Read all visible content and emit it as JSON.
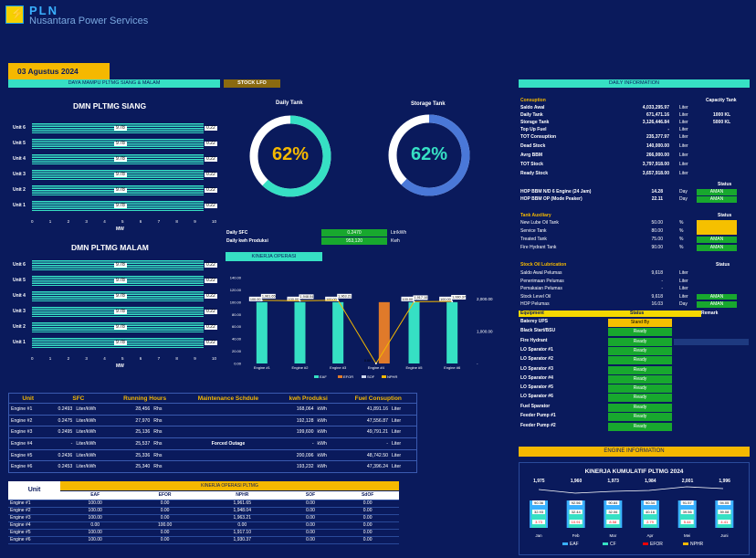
{
  "brand": {
    "name": "PLN",
    "subtitle": "Nusantara Power Services"
  },
  "date": "03 Agustus 2024",
  "labels": {
    "daya": "DAYA MAMPU PLTMG SIANG & MALAM",
    "stock": "STOCK LFO",
    "daily_info": "DAILY INFORMATION",
    "siang": "DMN PLTMG SIANG",
    "malam": "DMN PLTMG MALAM",
    "daily_tank": "Daily Tank",
    "storage_tank": "Storage Tank",
    "kinerja": "KINERJA OPERASI",
    "engine_info": "ENGINE INFORMATION",
    "kumulatif": "KINERJA KUMULATIF PLTMG 2024",
    "mw": "MW"
  },
  "tanks": {
    "daily_pct": "62%",
    "storage_pct": "62%",
    "daily_frac": 0.62,
    "storage_frac": 0.62
  },
  "sfc": {
    "daily_sfc_label": "Daily SFC",
    "daily_sfc": "0.2470",
    "daily_sfc_unit": "Ltr/kWh",
    "kwh_label": "Daily kwh Produksi",
    "kwh": "953,120",
    "kwh_unit": "Kwh"
  },
  "dmn": {
    "units": [
      "Unit 6",
      "Unit 5",
      "Unit 4",
      "Unit 3",
      "Unit 2",
      "Unit 1"
    ],
    "val": "9.78",
    "max": "0.22",
    "axis": [
      "0",
      "1",
      "2",
      "3",
      "4",
      "5",
      "6",
      "7",
      "8",
      "9",
      "10"
    ]
  },
  "chart_data": [
    {
      "type": "bar",
      "title": "KINERJA OPERASI",
      "categories": [
        "Engine #1",
        "Engine #2",
        "Engine #3",
        "Engine #4",
        "Engine #5",
        "Engine #6"
      ],
      "ylim": [
        0,
        140
      ],
      "y2lim": [
        0,
        2000
      ],
      "yticks": [
        "0.00",
        "20.00",
        "40.00",
        "60.00",
        "80.00",
        "100.00",
        "120.00",
        "140.00"
      ],
      "y2ticks": [
        "-",
        "1,000.00",
        "2,000.00"
      ],
      "series": [
        {
          "name": "EAF",
          "values": [
            100,
            100,
            100,
            0,
            100,
            100
          ],
          "color": "#36e0c4"
        },
        {
          "name": "EFOR",
          "values": [
            0,
            0,
            0,
            100,
            0,
            0
          ],
          "color": "#e07a2a"
        },
        {
          "name": "SOF",
          "values": [
            0,
            0,
            0,
            0,
            0,
            0
          ],
          "color": "#cfd8f0"
        },
        {
          "name": "NPHR",
          "values": [
            1961.65,
            1948.04,
            1963.21,
            0,
            1917.1,
            1930.37
          ],
          "color": "#f5b800"
        }
      ],
      "bar_labels": [
        "100.00",
        "100.00",
        "100.00",
        "0.00",
        "100.00",
        "100.00"
      ],
      "line_labels": [
        "1,961.65",
        "1,948.04",
        "1,963.21",
        "",
        "1,917.10",
        "1,930.37"
      ]
    },
    {
      "type": "bar",
      "title": "KINERJA KUMULATIF PLTMG 2024",
      "categories": [
        "Jan",
        "Feb",
        "Mar",
        "Apr",
        "Mei",
        "Juni"
      ],
      "series": [
        {
          "name": "EAF",
          "values": [
            90.36,
            92.56,
            90.84,
            90.34,
            91.57,
            94.05
          ]
        },
        {
          "name": "CF",
          "values": [
            32.93,
            32.44,
            32.06,
            40.16,
            39.56,
            39.08
          ]
        },
        {
          "name": "EFOR",
          "values": [
            3.73,
            10.91,
            8.58,
            2.79,
            5.44,
            4.41
          ]
        },
        {
          "name": "NPHR",
          "values": [
            1975,
            1960,
            1973,
            1984,
            2001,
            1996
          ]
        }
      ],
      "top_labels": [
        "1,975",
        "1,960",
        "1,973",
        "1,984",
        "2,001",
        "1,996"
      ]
    }
  ],
  "consumption": {
    "title": "Consuption",
    "cap": "Capacity Tank",
    "rows": [
      {
        "l": "Saldo Awal",
        "v": "4,033,295.97",
        "u": "Liter",
        "c": ""
      },
      {
        "l": "Daily Tank",
        "v": "671,471.16",
        "u": "Liter",
        "c": "1000 KL"
      },
      {
        "l": "Storage Tank",
        "v": "3,126,446.84",
        "u": "Liter",
        "c": "5000 KL"
      },
      {
        "l": "Top Up Fuel",
        "v": "-",
        "u": "Liter",
        "c": ""
      },
      {
        "l": "TOT Consuption",
        "v": "235,377.97",
        "u": "Liter",
        "c": ""
      },
      {
        "l": "Dead Stock",
        "v": "140,000.00",
        "u": "Liter",
        "c": ""
      },
      {
        "l": "Avrg BBM",
        "v": "266,000.00",
        "u": "Liter",
        "c": ""
      },
      {
        "l": "TOT Stock",
        "v": "3,797,918.00",
        "u": "Liter",
        "c": ""
      },
      {
        "l": "Ready Stock",
        "v": "3,657,918.00",
        "u": "Liter",
        "c": ""
      }
    ]
  },
  "hop": {
    "status": "Status",
    "rows": [
      {
        "l": "HOP BBM  N/D 6 Engine (24 Jam)",
        "v": "14.28",
        "u": "Day",
        "s": "AMAN"
      },
      {
        "l": "HOP BBM  OP (Mode Peaker)",
        "v": "22.11",
        "u": "Day",
        "s": "AMAN"
      }
    ]
  },
  "aux": {
    "title": "Tank Auxiliary",
    "status": "Status",
    "rows": [
      {
        "l": "New Lube Oil Tank",
        "v": "50.00",
        "u": "%",
        "s": ""
      },
      {
        "l": "Service Tank",
        "v": "80.00",
        "u": "%",
        "s": ""
      },
      {
        "l": "Treated Tank",
        "v": "75.00",
        "u": "%",
        "s": "AMAN"
      },
      {
        "l": "Fire Hydrant Tank",
        "v": "90.00",
        "u": "%",
        "s": "AMAN"
      }
    ]
  },
  "lub": {
    "title": "Stock Oil Lubrication",
    "status": "Status",
    "rows": [
      {
        "l": "Saldo Awal Pelumas",
        "v": "9,618",
        "u": "Liter",
        "s": ""
      },
      {
        "l": "Penerimaan Pelumas",
        "v": "-",
        "u": "Liter",
        "s": ""
      },
      {
        "l": "Pemakaian Pelumas",
        "v": "-",
        "u": "Liter",
        "s": ""
      },
      {
        "l": "Stock Level Oil",
        "v": "9,618",
        "u": "Liter",
        "s": "AMAN"
      },
      {
        "l": "HOP Pelumas",
        "v": "16.03",
        "u": "Day",
        "s": "AMAN"
      }
    ]
  },
  "equip": {
    "title": "Equipment",
    "status": "Status",
    "remark": "Remark",
    "rows": [
      {
        "l": "Baterey UPS",
        "s": "Stand By"
      },
      {
        "l": "Black Start/BSU",
        "s": "Ready"
      },
      {
        "l": "Fire Hydrant",
        "s": "Ready"
      },
      {
        "l": "LO Sparator #1",
        "s": "Ready"
      },
      {
        "l": "LO Sparator #2",
        "s": "Ready"
      },
      {
        "l": "LO Sparator #3",
        "s": "Ready"
      },
      {
        "l": "LO Sparator #4",
        "s": "Ready"
      },
      {
        "l": "LO Sparator #5",
        "s": "Ready"
      },
      {
        "l": "LO Sparator #6",
        "s": "Ready"
      },
      {
        "l": "Fuel Sparator",
        "s": "Ready"
      },
      {
        "l": "Feeder Pump #1",
        "s": "Ready"
      },
      {
        "l": "Feeder Pump #2",
        "s": "Ready"
      }
    ]
  },
  "engines": {
    "headers": [
      "Unit",
      "SFC",
      "Running Hours",
      "Maintenance Schdule",
      "kwh Produksi",
      "Fuel Consuption"
    ],
    "rows": [
      [
        "Engine #1",
        "0.2493",
        "Liter/kWh",
        "28,456",
        "Rhs",
        "",
        "168,064",
        "kWh",
        "41,891.16",
        "Liter"
      ],
      [
        "Engine #2",
        "0.2475",
        "Liter/kWh",
        "27,970",
        "Rhs",
        "",
        "192,128",
        "kWh",
        "47,556.87",
        "Liter"
      ],
      [
        "Engine #3",
        "0.2495",
        "Liter/kWh",
        "25,136",
        "Rhs",
        "",
        "199,600",
        "kWh",
        "49,791.21",
        "Liter"
      ],
      [
        "Engine #4",
        "-",
        "Liter/kWh",
        "25,537",
        "Rhs",
        "Forced Outage",
        "-",
        "kWh",
        "-",
        "Liter"
      ],
      [
        "Engine #5",
        "0.2436",
        "Liter/kWh",
        "25,336",
        "Rhs",
        "",
        "200,096",
        "kWh",
        "48,742.50",
        "Liter"
      ],
      [
        "Engine #6",
        "0.2453",
        "Liter/kWh",
        "25,340",
        "Rhs",
        "",
        "193,232",
        "kWh",
        "47,396.24",
        "Liter"
      ]
    ]
  },
  "kinerja_table": {
    "title": "KINERJA OPERASI PLTMG",
    "unit": "Unit",
    "headers": [
      "EAF",
      "EFOR",
      "NPHR",
      "SOF",
      "SdOF"
    ],
    "rows": [
      [
        "Engine #1",
        "100.00",
        "0.00",
        "1,961.65",
        "0.00",
        "0.00"
      ],
      [
        "Engine #2",
        "100.00",
        "0.00",
        "1,948.04",
        "0.00",
        "0.00"
      ],
      [
        "Engine #3",
        "100.00",
        "0.00",
        "1,963.21",
        "0.00",
        "0.00"
      ],
      [
        "Engine #4",
        "0.00",
        "100.00",
        "0.00",
        "0.00",
        "0.00"
      ],
      [
        "Engine #5",
        "100.00",
        "0.00",
        "1,917.10",
        "0.00",
        "0.00"
      ],
      [
        "Engine #6",
        "100.00",
        "0.00",
        "1,930.37",
        "0.00",
        "0.00"
      ]
    ]
  }
}
